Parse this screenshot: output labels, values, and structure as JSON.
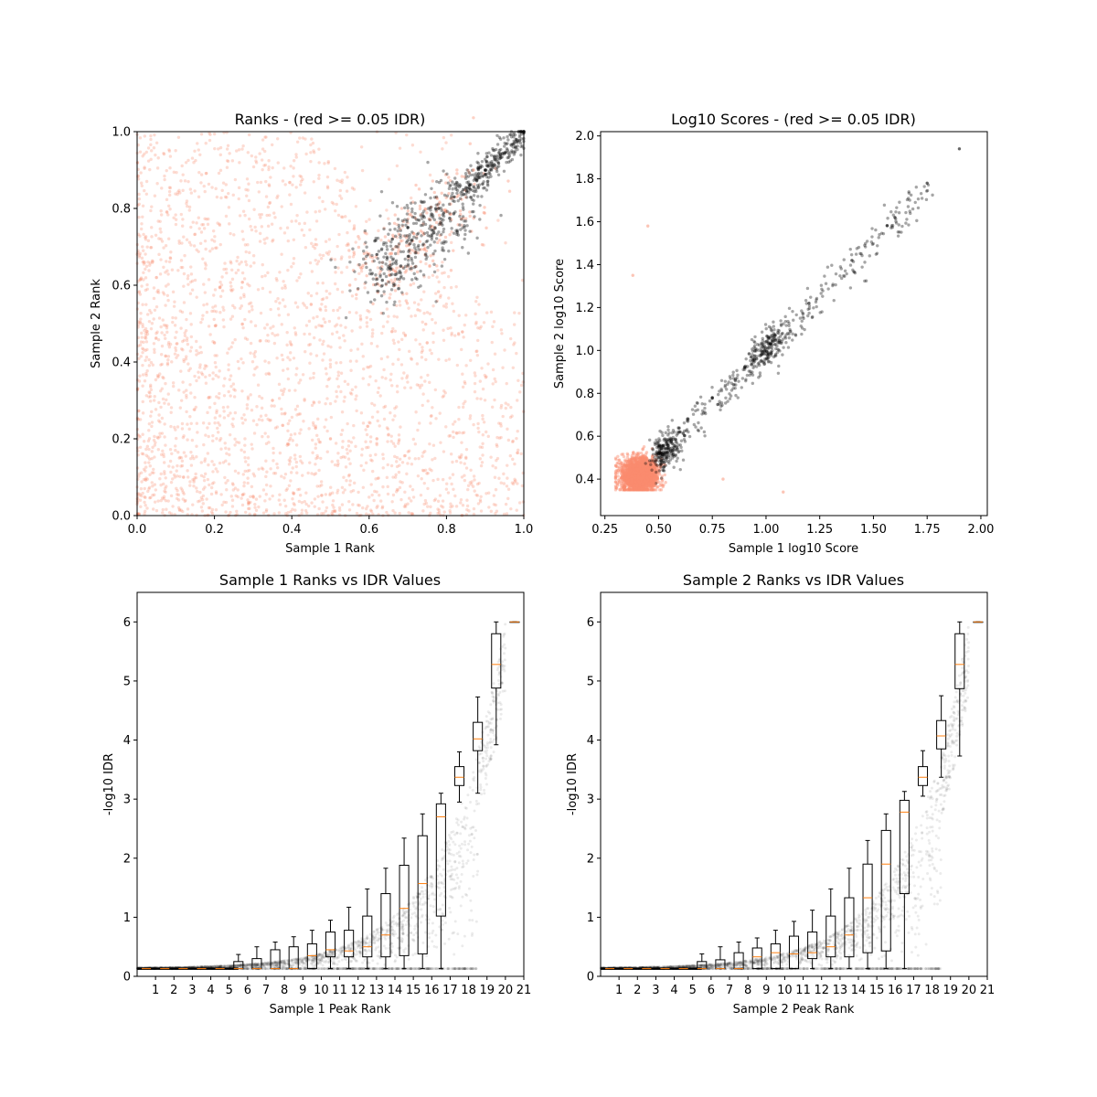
{
  "chart_data": [
    {
      "type": "scatter",
      "title": "Ranks - (red >= 0.05 IDR)",
      "xlabel": "Sample 1 Rank",
      "ylabel": "Sample 2 Rank",
      "xlim": [
        0.0,
        1.0
      ],
      "ylim": [
        0.0,
        1.0
      ],
      "xticks": [
        "0.0",
        "0.2",
        "0.4",
        "0.6",
        "0.8",
        "1.0"
      ],
      "yticks": [
        "0.0",
        "0.2",
        "0.4",
        "0.6",
        "0.8",
        "1.0"
      ],
      "colors": {
        "failing": "#fa8c6e",
        "passing": "#000000"
      },
      "sample_points": {
        "passing": [
          [
            0.62,
            0.68
          ],
          [
            0.66,
            0.72
          ],
          [
            0.7,
            0.75
          ],
          [
            0.74,
            0.78
          ],
          [
            0.78,
            0.8
          ],
          [
            0.82,
            0.83
          ],
          [
            0.86,
            0.86
          ],
          [
            0.9,
            0.9
          ],
          [
            0.94,
            0.94
          ],
          [
            0.98,
            0.98
          ],
          [
            1.0,
            1.0
          ]
        ],
        "failing": [
          [
            0.05,
            0.62
          ],
          [
            0.12,
            0.1
          ],
          [
            0.2,
            0.45
          ],
          [
            0.3,
            0.05
          ],
          [
            0.35,
            0.3
          ],
          [
            0.45,
            0.55
          ],
          [
            0.5,
            0.2
          ],
          [
            0.55,
            0.6
          ],
          [
            0.62,
            0.2
          ],
          [
            0.75,
            0.45
          ],
          [
            0.87,
            0.9
          ]
        ]
      }
    },
    {
      "type": "scatter",
      "title": "Log10 Scores - (red >= 0.05 IDR)",
      "xlabel": "Sample 1 log10 Score",
      "ylabel": "Sample 2 log10 Score",
      "xlim": [
        0.23,
        2.03
      ],
      "ylim": [
        0.23,
        2.02
      ],
      "xticks": [
        "0.25",
        "0.50",
        "0.75",
        "1.00",
        "1.25",
        "1.50",
        "1.75",
        "2.00"
      ],
      "yticks": [
        "0.4",
        "0.6",
        "0.8",
        "1.0",
        "1.2",
        "1.4",
        "1.6",
        "1.8",
        "2.0"
      ],
      "colors": {
        "failing": "#fa8c6e",
        "passing": "#000000"
      },
      "sample_points": {
        "passing": [
          [
            0.5,
            0.52
          ],
          [
            0.55,
            0.58
          ],
          [
            0.6,
            0.62
          ],
          [
            0.75,
            0.78
          ],
          [
            0.9,
            0.92
          ],
          [
            1.02,
            1.03
          ],
          [
            1.2,
            1.22
          ],
          [
            1.4,
            1.42
          ],
          [
            1.6,
            1.62
          ],
          [
            1.75,
            1.78
          ],
          [
            1.9,
            1.94
          ]
        ],
        "failing": [
          [
            0.35,
            0.4
          ],
          [
            0.4,
            0.43
          ],
          [
            0.45,
            0.45
          ],
          [
            0.48,
            0.38
          ],
          [
            0.42,
            0.48
          ],
          [
            0.4,
            0.52
          ],
          [
            0.38,
            1.35
          ],
          [
            0.45,
            1.58
          ],
          [
            0.8,
            0.4
          ],
          [
            1.08,
            0.34
          ]
        ]
      }
    },
    {
      "type": "box",
      "title": "Sample 1 Ranks vs IDR Values",
      "xlabel": "Sample 1 Peak Rank",
      "ylabel": "-log10 IDR",
      "xlim": [
        0,
        21
      ],
      "ylim": [
        0,
        6.5
      ],
      "xticks": [
        "1",
        "2",
        "3",
        "4",
        "5",
        "6",
        "7",
        "8",
        "9",
        "10",
        "11",
        "12",
        "13",
        "14",
        "15",
        "16",
        "17",
        "18",
        "19",
        "20",
        "21"
      ],
      "yticks": [
        "0",
        "1",
        "2",
        "3",
        "4",
        "5",
        "6"
      ],
      "boxes": [
        {
          "pos": 1,
          "q1": 0.13,
          "med": 0.13,
          "q3": 0.13,
          "wlo": 0.13,
          "whi": 0.13
        },
        {
          "pos": 2,
          "q1": 0.13,
          "med": 0.13,
          "q3": 0.13,
          "wlo": 0.13,
          "whi": 0.13
        },
        {
          "pos": 3,
          "q1": 0.13,
          "med": 0.13,
          "q3": 0.13,
          "wlo": 0.13,
          "whi": 0.13
        },
        {
          "pos": 4,
          "q1": 0.13,
          "med": 0.13,
          "q3": 0.13,
          "wlo": 0.13,
          "whi": 0.13
        },
        {
          "pos": 5,
          "q1": 0.13,
          "med": 0.13,
          "q3": 0.13,
          "wlo": 0.13,
          "whi": 0.13
        },
        {
          "pos": 6,
          "q1": 0.13,
          "med": 0.13,
          "q3": 0.25,
          "wlo": 0.13,
          "whi": 0.37
        },
        {
          "pos": 7,
          "q1": 0.13,
          "med": 0.13,
          "q3": 0.3,
          "wlo": 0.13,
          "whi": 0.5
        },
        {
          "pos": 8,
          "q1": 0.13,
          "med": 0.13,
          "q3": 0.45,
          "wlo": 0.13,
          "whi": 0.58
        },
        {
          "pos": 9,
          "q1": 0.13,
          "med": 0.13,
          "q3": 0.5,
          "wlo": 0.13,
          "whi": 0.67
        },
        {
          "pos": 10,
          "q1": 0.13,
          "med": 0.35,
          "q3": 0.55,
          "wlo": 0.13,
          "whi": 0.78
        },
        {
          "pos": 11,
          "q1": 0.33,
          "med": 0.45,
          "q3": 0.75,
          "wlo": 0.13,
          "whi": 0.95
        },
        {
          "pos": 12,
          "q1": 0.33,
          "med": 0.43,
          "q3": 0.78,
          "wlo": 0.13,
          "whi": 1.17
        },
        {
          "pos": 13,
          "q1": 0.33,
          "med": 0.5,
          "q3": 1.02,
          "wlo": 0.13,
          "whi": 1.48
        },
        {
          "pos": 14,
          "q1": 0.33,
          "med": 0.7,
          "q3": 1.4,
          "wlo": 0.13,
          "whi": 1.83
        },
        {
          "pos": 15,
          "q1": 0.35,
          "med": 1.15,
          "q3": 1.88,
          "wlo": 0.13,
          "whi": 2.34
        },
        {
          "pos": 16,
          "q1": 0.38,
          "med": 1.57,
          "q3": 2.38,
          "wlo": 0.13,
          "whi": 2.75
        },
        {
          "pos": 17,
          "q1": 1.02,
          "med": 2.7,
          "q3": 2.92,
          "wlo": 0.13,
          "whi": 3.1
        },
        {
          "pos": 18,
          "q1": 3.23,
          "med": 3.37,
          "q3": 3.55,
          "wlo": 2.95,
          "whi": 3.8
        },
        {
          "pos": 19,
          "q1": 3.82,
          "med": 4.02,
          "q3": 4.3,
          "wlo": 3.1,
          "whi": 4.73
        },
        {
          "pos": 20,
          "q1": 4.88,
          "med": 5.28,
          "q3": 5.8,
          "wlo": 3.92,
          "whi": 6.0
        },
        {
          "pos": 21,
          "q1": 6.0,
          "med": 6.0,
          "q3": 6.0,
          "wlo": 6.0,
          "whi": 6.0
        }
      ]
    },
    {
      "type": "box",
      "title": "Sample 2 Ranks vs IDR Values",
      "xlabel": "Sample 2 Peak Rank",
      "ylabel": "-log10 IDR",
      "xlim": [
        0,
        21
      ],
      "ylim": [
        0,
        6.5
      ],
      "xticks": [
        "1",
        "2",
        "3",
        "4",
        "5",
        "6",
        "7",
        "8",
        "9",
        "10",
        "11",
        "12",
        "13",
        "14",
        "15",
        "16",
        "17",
        "18",
        "19",
        "20",
        "21"
      ],
      "yticks": [
        "0",
        "1",
        "2",
        "3",
        "4",
        "5",
        "6"
      ],
      "boxes": [
        {
          "pos": 1,
          "q1": 0.13,
          "med": 0.13,
          "q3": 0.13,
          "wlo": 0.13,
          "whi": 0.13
        },
        {
          "pos": 2,
          "q1": 0.13,
          "med": 0.13,
          "q3": 0.13,
          "wlo": 0.13,
          "whi": 0.13
        },
        {
          "pos": 3,
          "q1": 0.13,
          "med": 0.13,
          "q3": 0.13,
          "wlo": 0.13,
          "whi": 0.13
        },
        {
          "pos": 4,
          "q1": 0.13,
          "med": 0.13,
          "q3": 0.13,
          "wlo": 0.13,
          "whi": 0.13
        },
        {
          "pos": 5,
          "q1": 0.13,
          "med": 0.13,
          "q3": 0.13,
          "wlo": 0.13,
          "whi": 0.13
        },
        {
          "pos": 6,
          "q1": 0.13,
          "med": 0.13,
          "q3": 0.25,
          "wlo": 0.13,
          "whi": 0.38
        },
        {
          "pos": 7,
          "q1": 0.13,
          "med": 0.13,
          "q3": 0.28,
          "wlo": 0.13,
          "whi": 0.5
        },
        {
          "pos": 8,
          "q1": 0.13,
          "med": 0.13,
          "q3": 0.4,
          "wlo": 0.13,
          "whi": 0.58
        },
        {
          "pos": 9,
          "q1": 0.13,
          "med": 0.33,
          "q3": 0.48,
          "wlo": 0.13,
          "whi": 0.65
        },
        {
          "pos": 10,
          "q1": 0.13,
          "med": 0.4,
          "q3": 0.55,
          "wlo": 0.13,
          "whi": 0.78
        },
        {
          "pos": 11,
          "q1": 0.13,
          "med": 0.38,
          "q3": 0.68,
          "wlo": 0.13,
          "whi": 0.93
        },
        {
          "pos": 12,
          "q1": 0.3,
          "med": 0.4,
          "q3": 0.75,
          "wlo": 0.13,
          "whi": 1.12
        },
        {
          "pos": 13,
          "q1": 0.33,
          "med": 0.5,
          "q3": 1.02,
          "wlo": 0.13,
          "whi": 1.48
        },
        {
          "pos": 14,
          "q1": 0.33,
          "med": 0.7,
          "q3": 1.33,
          "wlo": 0.13,
          "whi": 1.83
        },
        {
          "pos": 15,
          "q1": 0.4,
          "med": 1.33,
          "q3": 1.9,
          "wlo": 0.13,
          "whi": 2.3
        },
        {
          "pos": 16,
          "q1": 0.43,
          "med": 1.9,
          "q3": 2.47,
          "wlo": 0.13,
          "whi": 2.75
        },
        {
          "pos": 17,
          "q1": 1.4,
          "med": 2.78,
          "q3": 2.98,
          "wlo": 0.13,
          "whi": 3.13
        },
        {
          "pos": 18,
          "q1": 3.23,
          "med": 3.37,
          "q3": 3.55,
          "wlo": 3.05,
          "whi": 3.82
        },
        {
          "pos": 19,
          "q1": 3.85,
          "med": 4.07,
          "q3": 4.33,
          "wlo": 3.37,
          "whi": 4.75
        },
        {
          "pos": 20,
          "q1": 4.87,
          "med": 5.28,
          "q3": 5.8,
          "wlo": 3.73,
          "whi": 6.0
        },
        {
          "pos": 21,
          "q1": 6.0,
          "med": 6.0,
          "q3": 6.0,
          "wlo": 6.0,
          "whi": 6.0
        }
      ]
    }
  ]
}
